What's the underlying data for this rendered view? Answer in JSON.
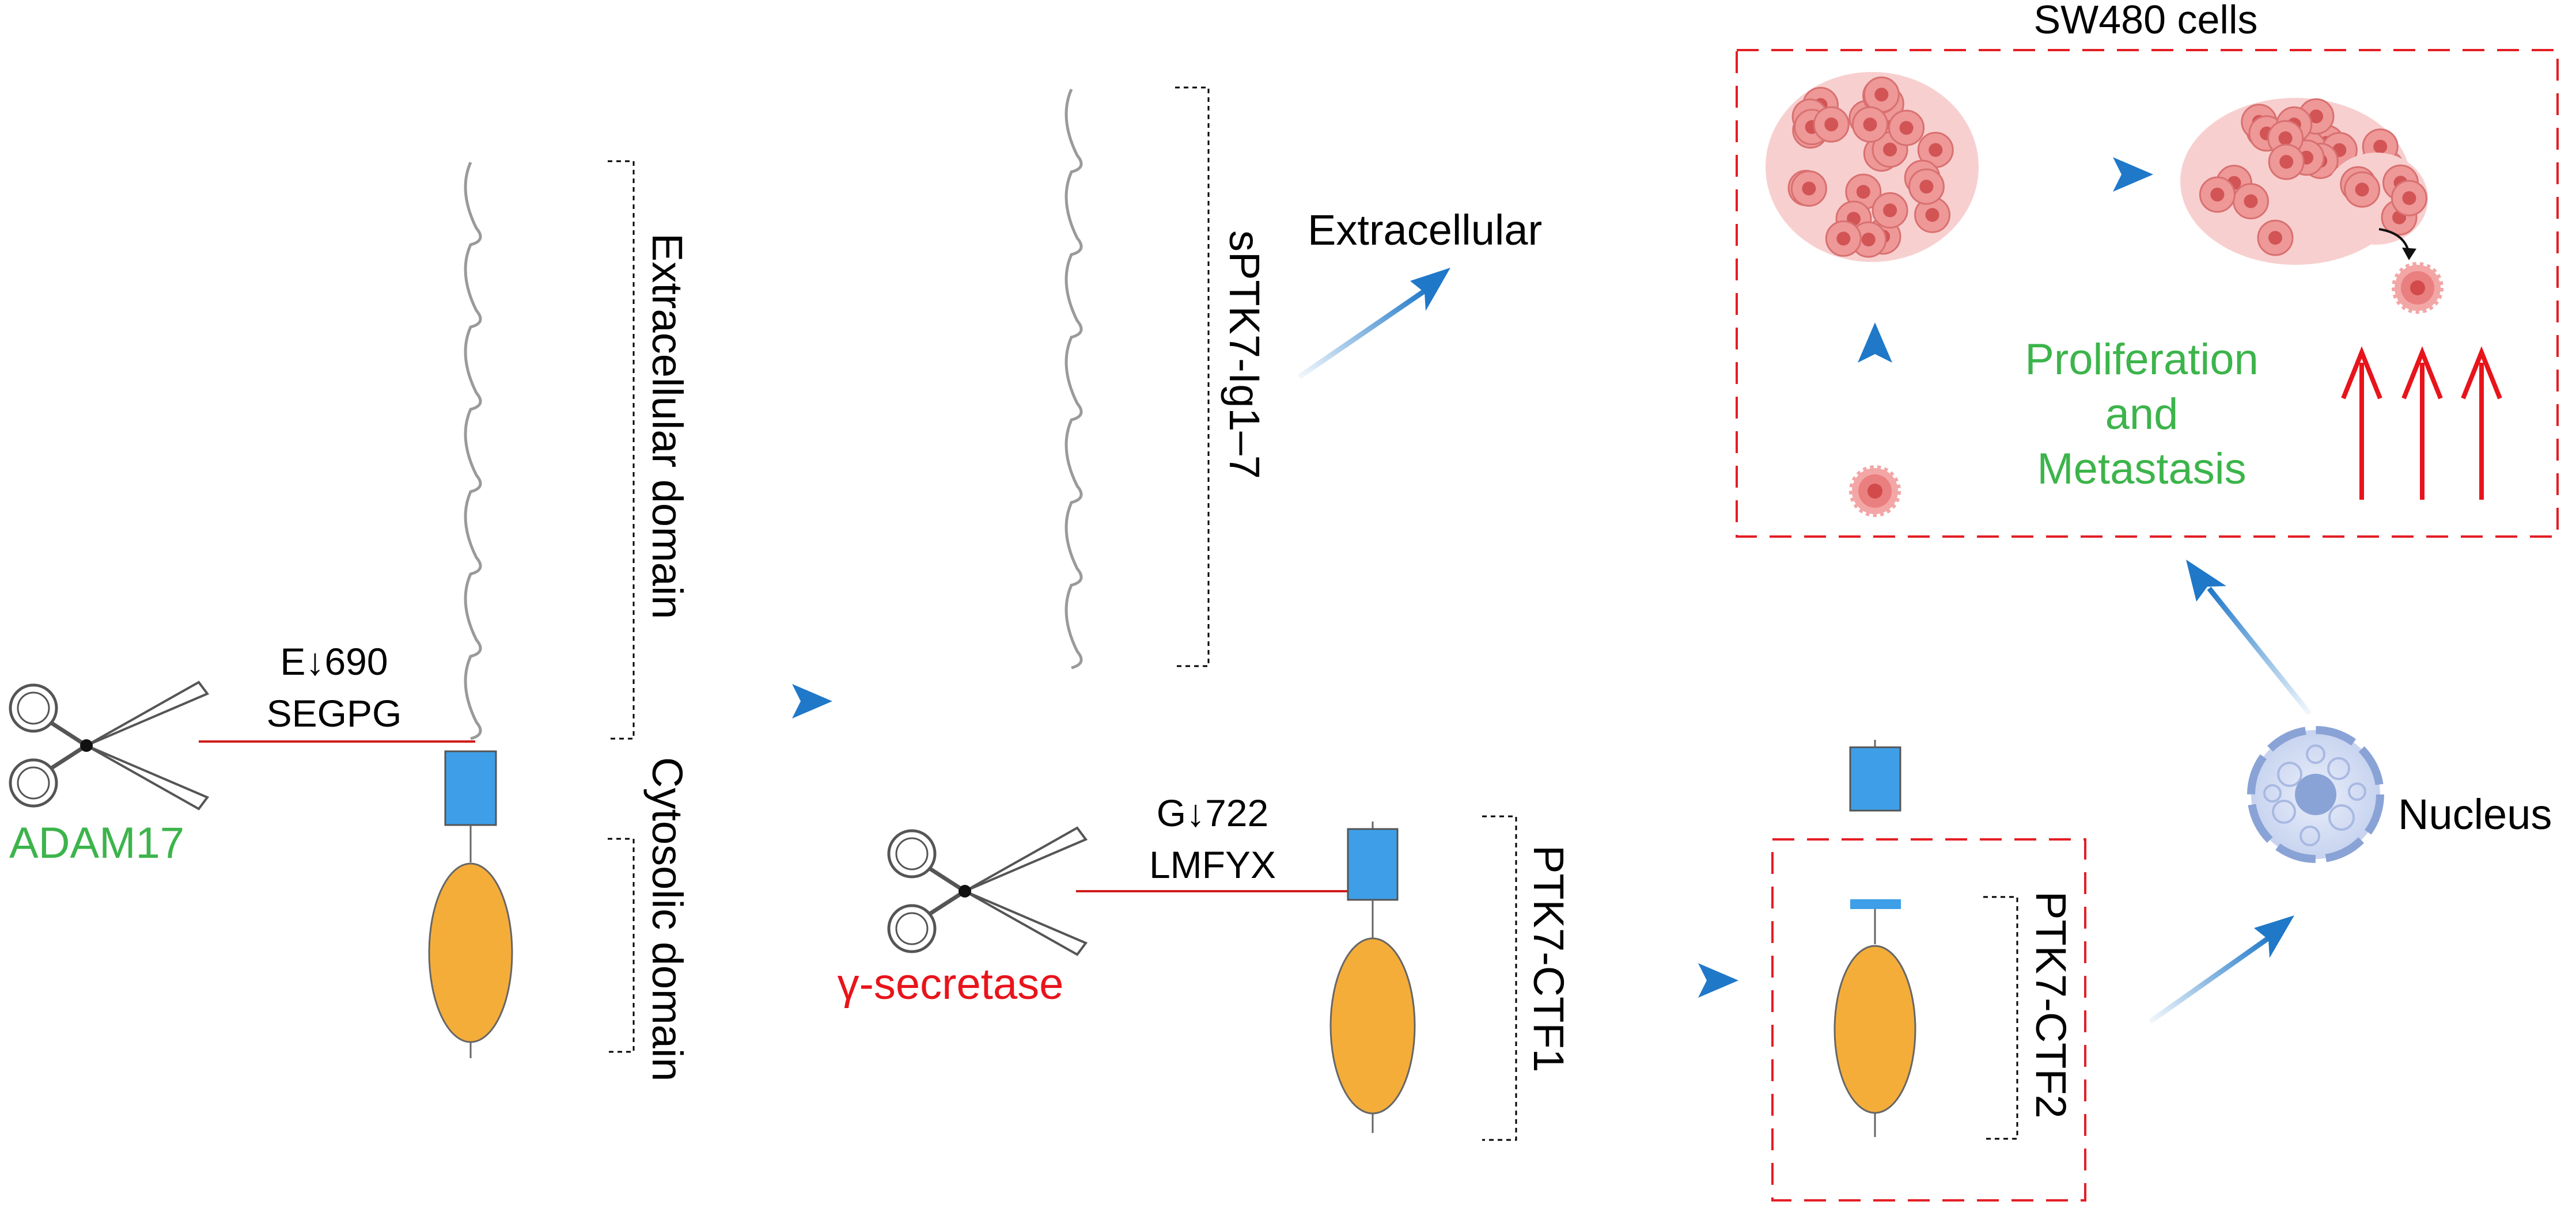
{
  "labels": {
    "sw480_cells": "SW480 cells",
    "extracellular": "Extracellular",
    "extracellular_domain": "Extracellular domain",
    "cytosolic_domain": "Cytosolic domain",
    "sptk7": "sPTK7-Ig1–7",
    "e690": "E↓690",
    "segpg": "SEGPG",
    "adam17": "ADAM17",
    "g722": "G↓722",
    "lmfyx": "LMFYX",
    "gamma_secretase": "γ-secretase",
    "ptk7_ctf1": "PTK7-CTF1",
    "ptk7_ctf2": "PTK7-CTF2",
    "nucleus": "Nucleus",
    "proliferation": "Proliferation",
    "and": "and",
    "metastasis": "Metastasis"
  },
  "colors": {
    "enzyme_green": "#3cb44b",
    "enzyme_red": "#e8141b",
    "membrane_red": "#d01c1c",
    "box_dash_red": "#e31e24",
    "arrow_blue": "#1f78c8",
    "tm_domain_blue": "#3e9fe8",
    "kinase_orange": "#f5ad3a",
    "cell_pink": "#e87c7c",
    "nucleus_blue": "#8aa3d6"
  },
  "icons": [
    "scissors-icon",
    "scissors-icon",
    "cell-cluster-icon",
    "cell-cluster-icon",
    "single-cell-icon",
    "nucleus-icon"
  ]
}
